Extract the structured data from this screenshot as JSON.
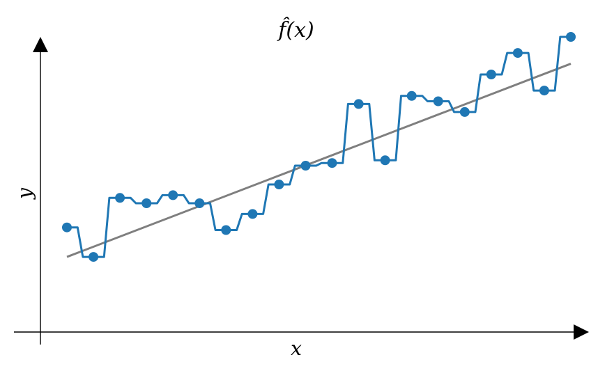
{
  "chart_data": {
    "type": "line",
    "title": "f̂(x)",
    "xlabel": "x",
    "ylabel": "y",
    "xlim": [
      0,
      20.5
    ],
    "ylim": [
      0,
      11
    ],
    "grid": false,
    "colors": {
      "step": "#1f77b4",
      "fit": "#7f7f7f",
      "axes": "#000000"
    },
    "series": [
      {
        "type": "scatter-step",
        "x": [
          1,
          2,
          3,
          4,
          5,
          6,
          7,
          8,
          9,
          10,
          11,
          12,
          13,
          14,
          15,
          16,
          17,
          18,
          19,
          20
        ],
        "y": [
          3.9,
          2.8,
          5.0,
          4.8,
          5.1,
          4.8,
          3.8,
          4.4,
          5.5,
          6.2,
          6.3,
          8.5,
          6.4,
          8.8,
          8.6,
          8.2,
          9.6,
          10.4,
          9.0,
          11.0
        ]
      },
      {
        "type": "line",
        "x": [
          1,
          20
        ],
        "y": [
          2.8,
          10.0
        ]
      }
    ]
  }
}
